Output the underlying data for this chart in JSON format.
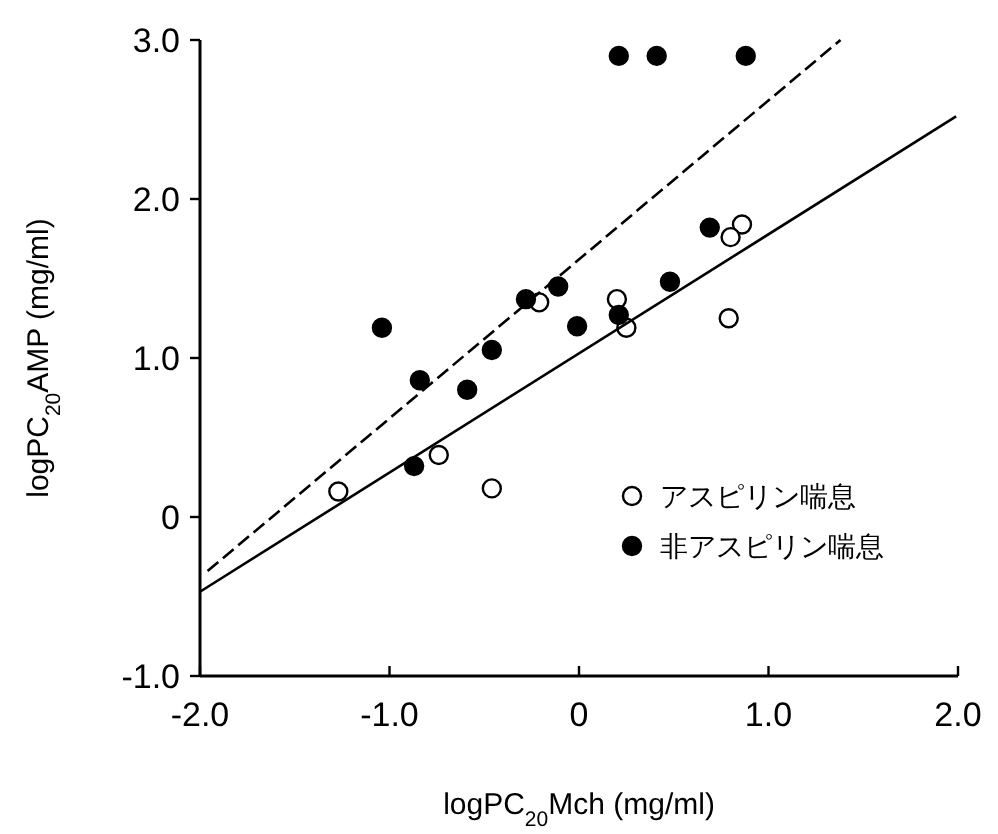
{
  "chart_data": {
    "type": "scatter",
    "xlabel": "logPC$_{20}$Mch (mg/ml)",
    "ylabel": "logPC$_{20}$AMP (mg/ml)",
    "xlim": [
      -2,
      2
    ],
    "ylim": [
      -1,
      3
    ],
    "xticks": [
      {
        "value": -2,
        "label": "-2.0"
      },
      {
        "value": -1,
        "label": "-1.0"
      },
      0,
      {
        "value": 1,
        "label": "1.0"
      },
      {
        "value": 2,
        "label": "2.0"
      }
    ],
    "yticks": [
      {
        "value": -1,
        "label": "-1.0"
      },
      0,
      {
        "value": 1,
        "label": "1.0"
      },
      {
        "value": 2,
        "label": "2.0"
      },
      {
        "value": 3,
        "label": "3.0"
      }
    ],
    "legend": "bottom right",
    "grid": false,
    "series": [
      {
        "name": "アスピリン喘息",
        "marker": "circle",
        "color": "#ffffff",
        "x": [
          0.86,
          0.8,
          0.2,
          0.25,
          -0.21,
          0.79,
          -1.27,
          -0.74,
          -0.46
        ],
        "values": [
          1.84,
          1.76,
          1.37,
          1.19,
          1.35,
          1.25,
          0.16,
          0.39,
          0.18
        ]
      },
      {
        "name": "非アスピリン喘息",
        "marker": "circle",
        "color": "#000000",
        "x": [
          0.21,
          0.41,
          0.88,
          0.69,
          0.48,
          0.21,
          -0.01,
          -0.11,
          -0.28,
          -1.04,
          -0.46,
          -0.84,
          -0.59,
          -0.87
        ],
        "values": [
          2.9,
          2.9,
          2.9,
          1.82,
          1.48,
          1.27,
          1.2,
          1.45,
          1.37,
          1.19,
          1.05,
          0.86,
          0.8,
          0.32
        ]
      },
      {
        "type": "line",
        "color": "#000000",
        "marker": "none",
        "line_style": "solid",
        "x": [
          -2,
          1.99
        ],
        "values": [
          -0.47,
          2.52
        ]
      },
      {
        "type": "line",
        "color": "#000000",
        "marker": "none",
        "line_style": "dashed",
        "x": [
          -1.96,
          1.38
        ],
        "values": [
          -0.34,
          3.0
        ]
      }
    ]
  }
}
